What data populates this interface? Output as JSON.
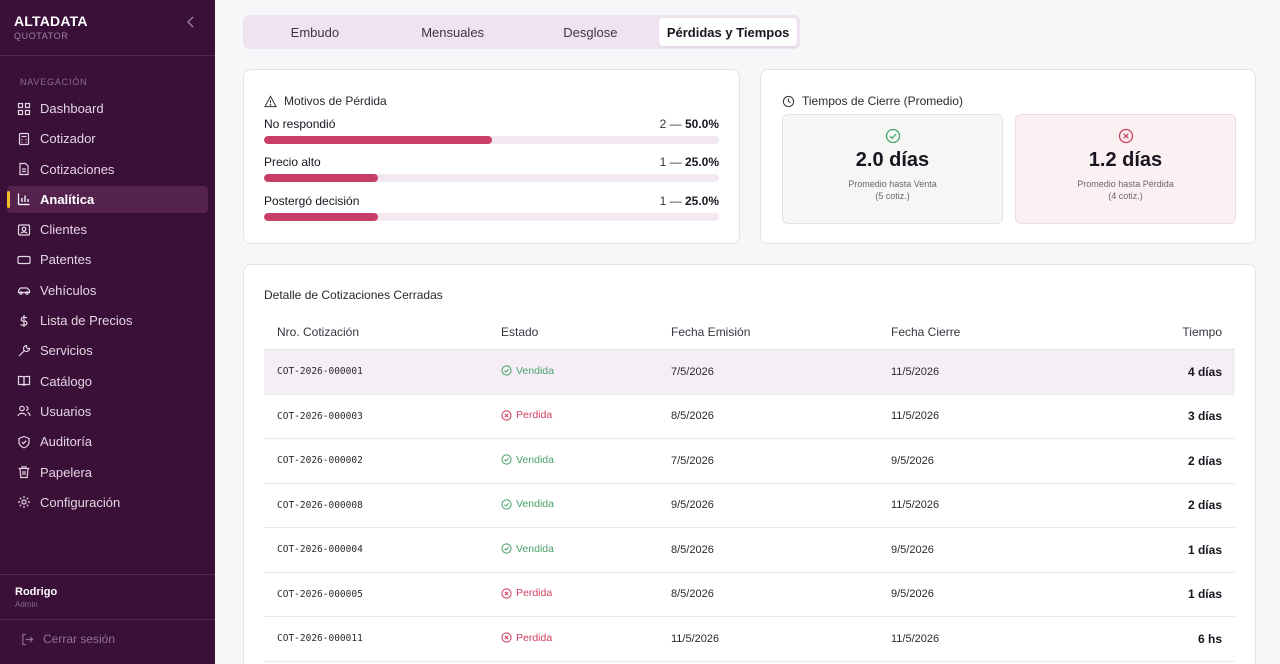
{
  "brand": {
    "name": "ALTADATA",
    "sub": "QUOTATOR"
  },
  "nav": {
    "section_title": "NAVEGACIÓN",
    "items": [
      {
        "label": "Dashboard",
        "icon": "grid-icon"
      },
      {
        "label": "Cotizador",
        "icon": "calculator-icon"
      },
      {
        "label": "Cotizaciones",
        "icon": "document-icon"
      },
      {
        "label": "Analítica",
        "icon": "bar-chart-icon",
        "active": true
      },
      {
        "label": "Clientes",
        "icon": "id-card-icon"
      },
      {
        "label": "Patentes",
        "icon": "license-plate-icon"
      },
      {
        "label": "Vehículos",
        "icon": "car-icon"
      },
      {
        "label": "Lista de Precios",
        "icon": "dollar-icon"
      },
      {
        "label": "Servicios",
        "icon": "wrench-icon"
      },
      {
        "label": "Catálogo",
        "icon": "book-icon"
      },
      {
        "label": "Usuarios",
        "icon": "users-icon"
      },
      {
        "label": "Auditoría",
        "icon": "shield-icon"
      },
      {
        "label": "Papelera",
        "icon": "trash-icon"
      },
      {
        "label": "Configuración",
        "icon": "gear-icon"
      }
    ]
  },
  "user": {
    "name": "Rodrigo",
    "role": "Admin"
  },
  "logout_label": "Cerrar sesión",
  "tabs": [
    {
      "label": "Embudo"
    },
    {
      "label": "Mensuales"
    },
    {
      "label": "Desglose"
    },
    {
      "label": "Pérdidas y Tiempos",
      "active": true
    }
  ],
  "loss_reasons": {
    "title": "Motivos de Pérdida",
    "items": [
      {
        "label": "No respondió",
        "count": "2 —",
        "percent_text": "50.0%",
        "percent": 50
      },
      {
        "label": "Precio alto",
        "count": "1 —",
        "percent_text": "25.0%",
        "percent": 25
      },
      {
        "label": "Postergó decisión",
        "count": "1 —",
        "percent_text": "25.0%",
        "percent": 25
      }
    ],
    "bar_color": "#c73f66"
  },
  "close_times": {
    "title": "Tiempos de Cierre (Promedio)",
    "win": {
      "value": "2.0 días",
      "label": "Promedio hasta Venta",
      "sub": "(5 cotiz.)",
      "color": "#4aa26a"
    },
    "loss": {
      "value": "1.2 días",
      "label": "Promedio hasta Pérdida",
      "sub": "(4 cotiz.)",
      "color": "#cf3d5d"
    }
  },
  "closed_table": {
    "title": "Detalle de Cotizaciones Cerradas",
    "headers": [
      "Nro. Cotización",
      "Estado",
      "Fecha Emisión",
      "Fecha Cierre",
      "Tiempo"
    ],
    "rows": [
      {
        "id": "COT-2026-000001",
        "status": "Vendida",
        "won": true,
        "issued": "7/5/2026",
        "closed": "11/5/2026",
        "time": "4 días"
      },
      {
        "id": "COT-2026-000003",
        "status": "Perdida",
        "won": false,
        "issued": "8/5/2026",
        "closed": "11/5/2026",
        "time": "3 días"
      },
      {
        "id": "COT-2026-000002",
        "status": "Vendida",
        "won": true,
        "issued": "7/5/2026",
        "closed": "9/5/2026",
        "time": "2 días"
      },
      {
        "id": "COT-2026-000008",
        "status": "Vendida",
        "won": true,
        "issued": "9/5/2026",
        "closed": "11/5/2026",
        "time": "2 días"
      },
      {
        "id": "COT-2026-000004",
        "status": "Vendida",
        "won": true,
        "issued": "8/5/2026",
        "closed": "9/5/2026",
        "time": "1 días"
      },
      {
        "id": "COT-2026-000005",
        "status": "Perdida",
        "won": false,
        "issued": "8/5/2026",
        "closed": "9/5/2026",
        "time": "1 días"
      },
      {
        "id": "COT-2026-000011",
        "status": "Perdida",
        "won": false,
        "issued": "11/5/2026",
        "closed": "11/5/2026",
        "time": "6 hs"
      }
    ]
  },
  "colors": {
    "sidebar_bg": "#3a0f38",
    "accent": "#f0c02a",
    "won": "#4aa26a",
    "lost": "#cf3d5d"
  }
}
